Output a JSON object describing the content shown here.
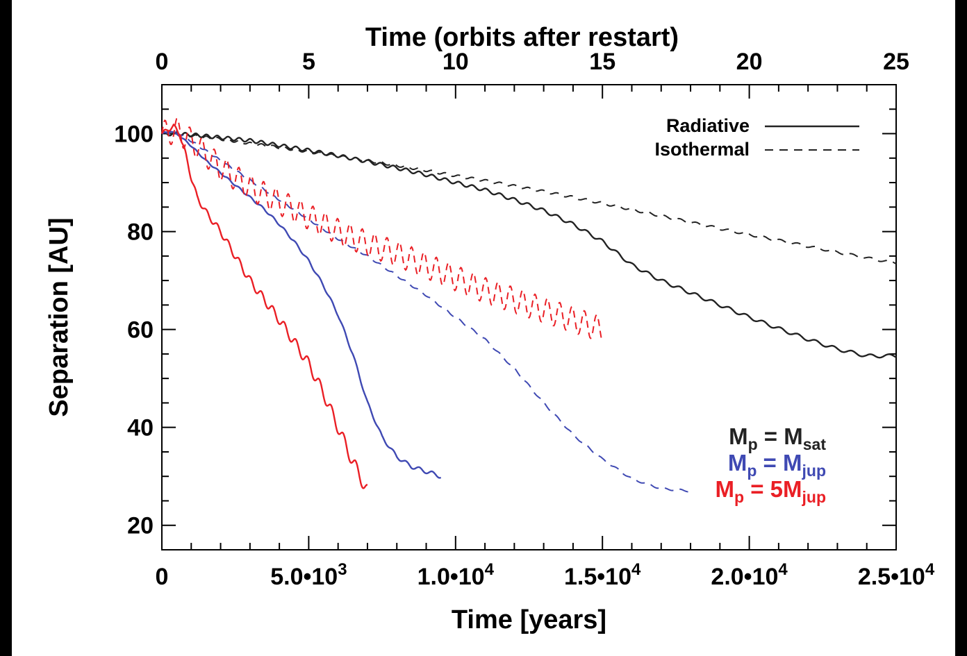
{
  "colors": {
    "background": "#000000",
    "plot_background": "#ffffff",
    "sat": "#222222",
    "jup": "#3f49b3",
    "five_jup": "#ea1f25"
  },
  "chart_data": {
    "type": "line",
    "xlabel": "Time [years]",
    "x2label": "Time (orbits after restart)",
    "ylabel": "Separation [AU]",
    "xlim": [
      0,
      25000
    ],
    "ylim": [
      15,
      110
    ],
    "x2lim": [
      0,
      25
    ],
    "x_tick_values": [
      0,
      5000,
      10000,
      15000,
      20000,
      25000
    ],
    "x_tick_labels": [
      {
        "mantissa": "0",
        "exponent": ""
      },
      {
        "mantissa": "5.0•10",
        "exponent": "3"
      },
      {
        "mantissa": "1.0•10",
        "exponent": "4"
      },
      {
        "mantissa": "1.5•10",
        "exponent": "4"
      },
      {
        "mantissa": "2.0•10",
        "exponent": "4"
      },
      {
        "mantissa": "2.5•10",
        "exponent": "4"
      }
    ],
    "x2_ticks": [
      "0",
      "5",
      "10",
      "15",
      "20",
      "25"
    ],
    "y_ticks": [
      "20",
      "40",
      "60",
      "80",
      "100"
    ],
    "grid": false,
    "legend_linestyle": {
      "position": "top-right",
      "entries": [
        {
          "label": "Radiative",
          "style": "solid"
        },
        {
          "label": "Isothermal",
          "style": "dashed"
        }
      ]
    },
    "legend_mass": {
      "position": "bottom-right",
      "entries": [
        {
          "base": "M",
          "sub": "p",
          "eq": " =  M",
          "sub2": "sat",
          "color": "#222222"
        },
        {
          "base": "M",
          "sub": "p",
          "eq": " =  M",
          "sub2": "jup",
          "color": "#3f49b3"
        },
        {
          "base": "M",
          "sub": "p",
          "eq": " = 5M",
          "sub2": "jup",
          "color": "#ea1f25"
        }
      ]
    },
    "series": [
      {
        "mass": "sat",
        "style": "solid",
        "color": "#222222",
        "wiggle": 0.35,
        "x": [
          0,
          1000,
          2000,
          3000,
          4000,
          5000,
          6000,
          7000,
          8000,
          9000,
          10000,
          11000,
          12000,
          13000,
          14000,
          15000,
          16000,
          17000,
          18000,
          19000,
          20000,
          21000,
          22000,
          23000,
          24000,
          25000
        ],
        "y": [
          100,
          99.8,
          99.2,
          98.6,
          97.6,
          96.6,
          95.5,
          94.3,
          93,
          91.6,
          90,
          88.5,
          86.5,
          84.3,
          81.5,
          78,
          73.2,
          70,
          67.5,
          65,
          62.5,
          60.2,
          58,
          56,
          54.6,
          54.6
        ]
      },
      {
        "mass": "sat",
        "style": "dashed",
        "color": "#222222",
        "wiggle": 0.25,
        "x": [
          0,
          1000,
          2000,
          3000,
          4000,
          5000,
          6000,
          7000,
          8000,
          9000,
          10000,
          11000,
          12000,
          13000,
          14000,
          15000,
          16000,
          17000,
          18000,
          19000,
          20000,
          21000,
          22000,
          23000,
          24000,
          25000
        ],
        "y": [
          100,
          99.6,
          98.9,
          98,
          97.2,
          96.3,
          95.4,
          94.5,
          93.5,
          92.5,
          91.4,
          90.4,
          89.3,
          88.2,
          87,
          85.8,
          84.5,
          83.2,
          81.9,
          80.6,
          79.4,
          78.2,
          77,
          75.8,
          74.6,
          73.6
        ]
      },
      {
        "mass": "jup",
        "style": "solid",
        "color": "#3f49b3",
        "wiggle": 0.3,
        "x": [
          0,
          300,
          600,
          1000,
          1500,
          2000,
          2500,
          3000,
          3500,
          4000,
          4500,
          5000,
          5500,
          6000,
          6500,
          7000,
          7500,
          8000,
          8500,
          9000,
          9500
        ],
        "y": [
          100,
          100.5,
          99.6,
          97.5,
          94.5,
          92,
          89.5,
          87,
          84.5,
          81.5,
          78,
          74,
          69,
          63,
          55,
          45,
          38,
          34,
          32,
          31,
          30
        ]
      },
      {
        "mass": "jup",
        "style": "dashed",
        "color": "#3f49b3",
        "wiggle": 0.2,
        "x": [
          0,
          500,
          1000,
          2000,
          3000,
          4000,
          5000,
          6000,
          7000,
          8000,
          9000,
          10000,
          11000,
          12000,
          13000,
          14000,
          15000,
          16000,
          17000,
          18000
        ],
        "y": [
          100,
          100.4,
          98.5,
          94.5,
          90.5,
          86.5,
          82.5,
          78.5,
          75,
          71,
          67,
          62.5,
          58,
          52,
          45,
          38.5,
          33.5,
          29.5,
          27.5,
          27
        ]
      },
      {
        "mass": "five_jup",
        "style": "solid",
        "color": "#ea1f25",
        "wiggle": 1.0,
        "x": [
          0,
          200,
          400,
          600,
          800,
          1000,
          1200,
          1500,
          2000,
          2500,
          3000,
          3500,
          4000,
          4500,
          5000,
          5500,
          6000,
          6500,
          7000
        ],
        "y": [
          100,
          100.8,
          101.5,
          100,
          96,
          91,
          87,
          84,
          80,
          75,
          70,
          66,
          62,
          57.5,
          53,
          47,
          40,
          33,
          27
        ]
      },
      {
        "mass": "five_jup",
        "style": "dashed",
        "color": "#ea1f25",
        "wiggle": 2.6,
        "x": [
          0,
          500,
          1000,
          1500,
          2000,
          3000,
          4000,
          5000,
          6000,
          7000,
          8000,
          9000,
          10000,
          11000,
          12000,
          13000,
          14000,
          15000
        ],
        "y": [
          100,
          100.6,
          98.5,
          95.8,
          93,
          89,
          86,
          83,
          80,
          77.5,
          75.5,
          73,
          70.5,
          68,
          66,
          64,
          62,
          60
        ]
      }
    ]
  }
}
